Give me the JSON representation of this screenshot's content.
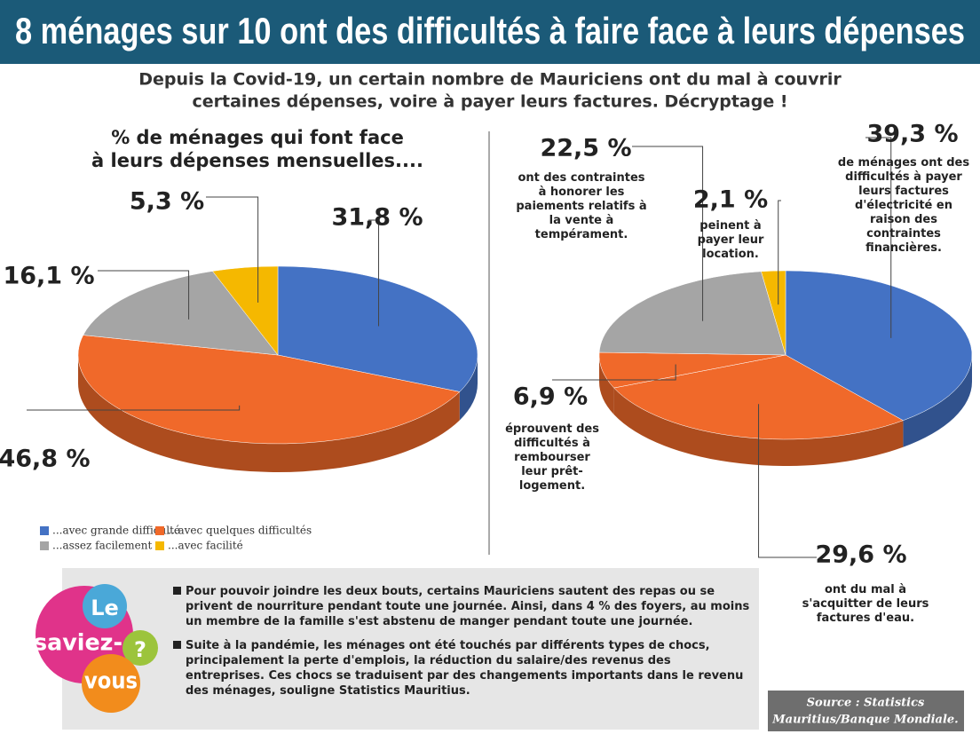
{
  "header": {
    "title": "8 ménages sur 10 ont des difficultés à faire face à leurs dépenses",
    "subtitle": [
      "Depuis la Covid-19, un certain nombre de Mauriciens ont du mal à couvrir",
      "certaines dépenses, voire à payer leurs factures. Décryptage !"
    ]
  },
  "chart_data": [
    {
      "type": "pie",
      "title": [
        "% de ménages qui font face",
        "à leurs dépenses mensuelles...."
      ],
      "categories": [
        "...avec grande difficulté",
        "...avec quelques difficultés",
        "...assez facilement",
        "...avec facilité"
      ],
      "values": [
        31.8,
        46.8,
        16.1,
        5.3
      ],
      "value_labels": [
        "31,8 %",
        "46,8 %",
        "16,1 %",
        "5,3 %"
      ],
      "colors": [
        "#4472c4",
        "#f0692a",
        "#a5a5a5",
        "#f5b800"
      ],
      "legend": "bottom-left"
    },
    {
      "type": "pie",
      "categories": [
        "de ménages ont des difficultés à payer leurs factures d'électricité en raison des contraintes financières.",
        "ont du mal à s'acquitter de leurs factures d'eau.",
        "éprouvent des difficultés à rembourser leur prêt-logement.",
        "ont des contraintes à honorer les paiements relatifs à la vente à tempérament.",
        "peinent à payer leur location."
      ],
      "values": [
        39.3,
        29.6,
        6.9,
        22.5,
        2.1
      ],
      "value_labels": [
        "39,3 %",
        "29,6 %",
        "6,9 %",
        "22,5 %",
        "2,1 %"
      ],
      "colors": [
        "#4472c4",
        "#f0692a",
        "#f0692a",
        "#a5a5a5",
        "#f5b800"
      ]
    }
  ],
  "info": {
    "bullets": [
      "Pour pouvoir joindre les deux bouts, certains Mauriciens sautent des repas ou se privent de nourriture pendant toute une journée. Ainsi, dans 4 % des foyers, au moins un membre de la famille s'est abstenu de manger pendant toute une journée.",
      "Suite à la pandémie, les ménages ont été touchés par différents types de chocs, principalement la perte d'emplois, la réduction du salaire/des revenus des entreprises. Ces chocs se traduisent par des changements importants dans le revenu des ménages, souligne Statistics Mauritius."
    ]
  },
  "logo": [
    "Le",
    "saviez-",
    "?",
    "vous"
  ],
  "source": [
    "Source : Statistics",
    "Mauritius/Banque Mondiale."
  ]
}
